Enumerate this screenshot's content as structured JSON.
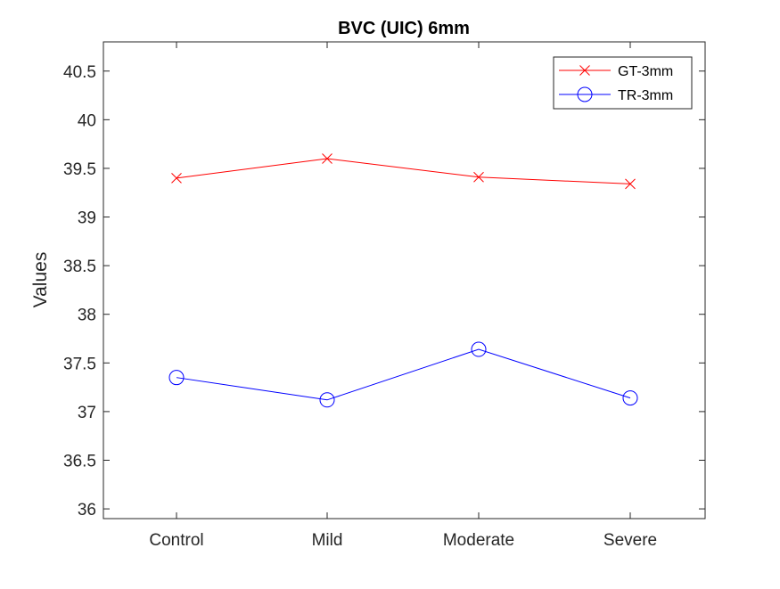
{
  "chart_data": {
    "type": "line",
    "title": "BVC (UIC) 6mm",
    "xlabel": "",
    "ylabel": "Values",
    "categories": [
      "Control",
      "Mild",
      "Moderate",
      "Severe"
    ],
    "ylim": [
      35.9,
      40.8
    ],
    "yticks": [
      "36",
      "36.5",
      "37",
      "37.5",
      "38",
      "38.5",
      "39",
      "39.5",
      "40",
      "40.5"
    ],
    "grid": false,
    "legend_position": "top-right",
    "series": [
      {
        "name": "GT-3mm",
        "values": [
          39.4,
          39.6,
          39.41,
          39.34
        ],
        "color": "#ff0000",
        "marker": "x-mark"
      },
      {
        "name": "TR-3mm",
        "values": [
          37.35,
          37.12,
          37.64,
          37.14
        ],
        "color": "#0000ff",
        "marker": "circle"
      }
    ]
  }
}
